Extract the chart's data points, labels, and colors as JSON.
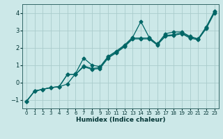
{
  "title": "",
  "xlabel": "Humidex (Indice chaleur)",
  "bg_color": "#cce8e8",
  "grid_color": "#aacccc",
  "line_color": "#006666",
  "xlim": [
    -0.5,
    23.5
  ],
  "ylim": [
    -1.5,
    4.5
  ],
  "xticks": [
    0,
    1,
    2,
    3,
    4,
    5,
    6,
    7,
    8,
    9,
    10,
    11,
    12,
    13,
    14,
    15,
    16,
    17,
    18,
    19,
    20,
    21,
    22,
    23
  ],
  "yticks": [
    -1,
    0,
    1,
    2,
    3,
    4
  ],
  "line1_x": [
    0,
    1,
    2,
    3,
    4,
    5,
    6,
    7,
    8,
    9,
    10,
    11,
    12,
    13,
    14,
    15,
    16,
    17,
    18,
    19,
    20,
    21,
    22,
    23
  ],
  "line1_y": [
    -1.1,
    -0.5,
    -0.4,
    -0.3,
    -0.25,
    -0.1,
    0.5,
    1.4,
    1.0,
    0.9,
    1.5,
    1.8,
    2.15,
    2.6,
    3.5,
    2.6,
    2.2,
    2.8,
    2.9,
    2.9,
    2.65,
    2.5,
    3.2,
    4.1
  ],
  "line2_x": [
    0,
    1,
    2,
    3,
    4,
    5,
    6,
    7,
    8,
    9,
    10,
    11,
    12,
    13,
    14,
    15,
    16,
    17,
    18,
    19,
    20,
    21,
    22,
    23
  ],
  "line2_y": [
    -1.1,
    -0.5,
    -0.4,
    -0.3,
    -0.25,
    0.45,
    0.45,
    0.95,
    0.8,
    0.85,
    1.45,
    1.75,
    2.1,
    2.55,
    2.55,
    2.55,
    2.2,
    2.7,
    2.75,
    2.85,
    2.6,
    2.5,
    3.15,
    4.05
  ],
  "line3_x": [
    0,
    1,
    2,
    3,
    4,
    5,
    6,
    7,
    8,
    9,
    10,
    11,
    12,
    13,
    14,
    15,
    16,
    17,
    18,
    19,
    20,
    21,
    22,
    23
  ],
  "line3_y": [
    -1.1,
    -0.5,
    -0.4,
    -0.3,
    -0.25,
    0.45,
    0.45,
    0.9,
    0.75,
    0.8,
    1.4,
    1.7,
    2.05,
    2.5,
    2.5,
    2.5,
    2.15,
    2.65,
    2.7,
    2.8,
    2.55,
    2.45,
    3.1,
    4.0
  ]
}
